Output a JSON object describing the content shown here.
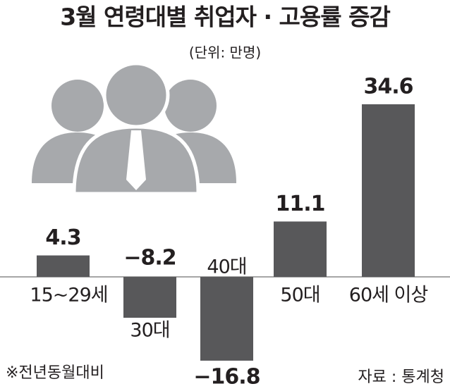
{
  "chart_data": {
    "type": "bar",
    "title": "3월 연령대별 취업자 · 고용률 증감",
    "subtitle": "(단위: 만명)",
    "categories": [
      "15~29세",
      "30대",
      "40대",
      "50대",
      "60세 이상"
    ],
    "values": [
      4.3,
      -8.2,
      -16.8,
      11.1,
      34.6
    ],
    "value_labels": [
      "4.3",
      "−8.2",
      "−16.8",
      "11.1",
      "34.6"
    ],
    "color": "#58585a",
    "note": "※전년동월대비",
    "source": "자료 : 통계청"
  }
}
